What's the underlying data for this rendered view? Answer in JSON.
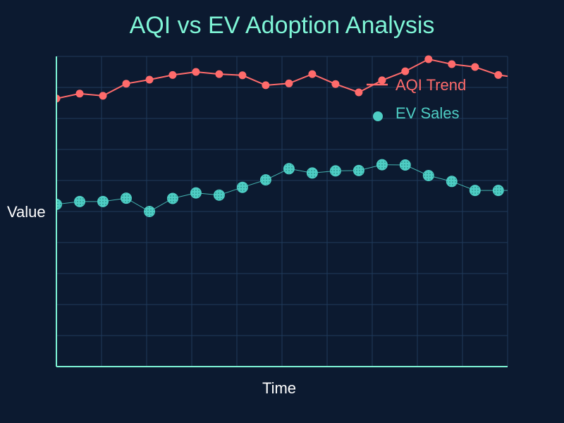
{
  "chart_data": {
    "type": "line",
    "title": "AQI vs EV Adoption Analysis",
    "xlabel": "Time",
    "ylabel": "Value",
    "grid": true,
    "legend_position": "top-right",
    "x": [
      0,
      1,
      2,
      3,
      4,
      5,
      6,
      7,
      8,
      9,
      10,
      11,
      12,
      13,
      14,
      15,
      16,
      17,
      18,
      19,
      20
    ],
    "xlim": [
      0,
      19.4
    ],
    "ylim": [
      0,
      100
    ],
    "series": [
      {
        "name": "AQI Trend",
        "style": "line-markers",
        "color": "#ff6b6b",
        "values": [
          86.4,
          88.0,
          87.3,
          91.2,
          92.5,
          94.0,
          95.0,
          94.3,
          93.9,
          90.7,
          91.3,
          94.3,
          91.1,
          88.4,
          92.3,
          95.2,
          99.1,
          97.5,
          96.6,
          94.0,
          93.0
        ]
      },
      {
        "name": "EV Sales",
        "style": "markers",
        "color": "#4ecdc4",
        "values": [
          52.3,
          53.2,
          53.2,
          54.3,
          50.0,
          54.2,
          56.0,
          55.3,
          57.8,
          60.2,
          63.8,
          62.4,
          63.1,
          63.2,
          65.1,
          65.0,
          61.6,
          59.7,
          56.8,
          56.8,
          56.8
        ]
      }
    ],
    "colors": {
      "background": "#0c1a30",
      "title": "#7ff5d6",
      "axis_line": "#7ff5d6",
      "grid": "#1f3a5a",
      "label": "#ffffff"
    }
  }
}
